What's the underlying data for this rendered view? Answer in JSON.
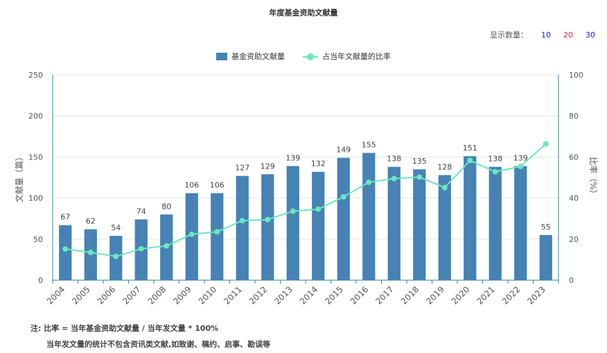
{
  "title": "年度基金资助文献量",
  "count_selector": {
    "label": "显示数量：",
    "options": [
      {
        "label": "10",
        "color": "#1a1aff"
      },
      {
        "label": "20",
        "color": "#e0242e"
      },
      {
        "label": "30",
        "color": "#1a1aff"
      }
    ]
  },
  "colors": {
    "bar": "#4682b4",
    "line": "#6ce6bf",
    "axis": "#2b8a8a",
    "grid": "#e6e6e6"
  },
  "chart_data": {
    "type": "bar",
    "categories": [
      "2004",
      "2005",
      "2006",
      "2007",
      "2008",
      "2009",
      "2010",
      "2011",
      "2012",
      "2013",
      "2014",
      "2015",
      "2016",
      "2017",
      "2018",
      "2019",
      "2020",
      "2021",
      "2022",
      "2023"
    ],
    "series": [
      {
        "name": "基金资助文献量",
        "type": "bar",
        "axis": "left",
        "values": [
          67,
          62,
          54,
          74,
          80,
          106,
          106,
          127,
          129,
          139,
          132,
          149,
          155,
          138,
          135,
          128,
          151,
          138,
          139,
          55
        ]
      },
      {
        "name": "占当年文献量的比率",
        "type": "line",
        "axis": "right",
        "values": [
          15.2,
          13.5,
          11.6,
          15.3,
          16.7,
          22.4,
          23.6,
          29.0,
          29.5,
          33.6,
          34.6,
          40.6,
          47.7,
          49.5,
          50.2,
          45.1,
          58.3,
          52.8,
          55.4,
          66.4
        ]
      }
    ],
    "ylabel": "文献量（篇）",
    "y2label": "比率（%）",
    "ylim": [
      0,
      250
    ],
    "yticks": [
      0,
      50,
      100,
      150,
      200,
      250
    ],
    "y2lim": [
      0,
      100
    ],
    "y2ticks": [
      0,
      20,
      40,
      60,
      80,
      100
    ],
    "grid": true,
    "legend": "top-center"
  },
  "notes": {
    "line1": "注:   比率 = 当年基金资助文献量 / 当年发文量 * 100%",
    "line2": "当年发文量的统计不包含资讯类文献,如致谢、稿约、启事、勘误等"
  }
}
